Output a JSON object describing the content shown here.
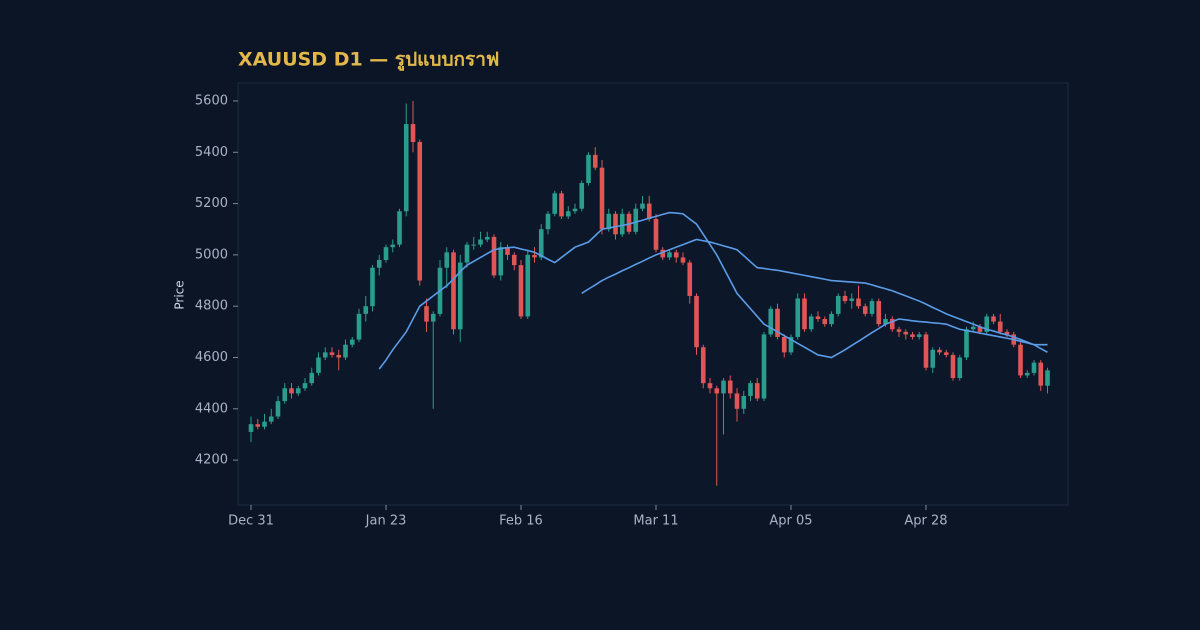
{
  "chart_data": {
    "type": "candlestick",
    "title": "XAUUSD D1 — รูปแบบกราฟ",
    "y_label": "Price",
    "ylim": [
      4025,
      5670
    ],
    "yticks": [
      4200,
      4400,
      4600,
      4800,
      5000,
      5200,
      5400,
      5600
    ],
    "up_color": "#2a9d8f",
    "down_color": "#e05656",
    "categories": [
      "Dec 31",
      null,
      null,
      null,
      null,
      null,
      null,
      null,
      null,
      null,
      null,
      null,
      null,
      null,
      null,
      null,
      null,
      null,
      null,
      null,
      "Jan 23",
      null,
      null,
      null,
      null,
      null,
      null,
      null,
      null,
      null,
      null,
      null,
      null,
      null,
      null,
      null,
      null,
      null,
      null,
      null,
      "Feb 16",
      null,
      null,
      null,
      null,
      null,
      null,
      null,
      null,
      null,
      null,
      null,
      null,
      null,
      null,
      null,
      null,
      null,
      null,
      null,
      "Mar 11",
      null,
      null,
      null,
      null,
      null,
      null,
      null,
      null,
      null,
      null,
      null,
      null,
      null,
      null,
      null,
      null,
      null,
      null,
      null,
      "Apr 05",
      null,
      null,
      null,
      null,
      null,
      null,
      null,
      null,
      null,
      null,
      null,
      null,
      null,
      null,
      null,
      null,
      null,
      null,
      null,
      "Apr 28",
      null,
      null,
      null,
      null,
      null,
      null,
      null,
      null,
      null,
      null,
      null,
      null,
      null,
      null,
      null,
      null,
      null,
      null
    ],
    "ohlc": [
      [
        4310,
        4370,
        4270,
        4340
      ],
      [
        4340,
        4360,
        4320,
        4330
      ],
      [
        4330,
        4380,
        4320,
        4350
      ],
      [
        4350,
        4400,
        4340,
        4370
      ],
      [
        4370,
        4450,
        4360,
        4430
      ],
      [
        4430,
        4500,
        4420,
        4480
      ],
      [
        4480,
        4500,
        4440,
        4460
      ],
      [
        4460,
        4490,
        4450,
        4480
      ],
      [
        4480,
        4520,
        4470,
        4500
      ],
      [
        4500,
        4560,
        4490,
        4540
      ],
      [
        4540,
        4620,
        4530,
        4600
      ],
      [
        4600,
        4640,
        4590,
        4620
      ],
      [
        4620,
        4640,
        4600,
        4610
      ],
      [
        4610,
        4630,
        4550,
        4600
      ],
      [
        4600,
        4670,
        4590,
        4650
      ],
      [
        4650,
        4680,
        4640,
        4670
      ],
      [
        4670,
        4790,
        4660,
        4770
      ],
      [
        4770,
        4840,
        4740,
        4800
      ],
      [
        4800,
        4960,
        4780,
        4950
      ],
      [
        4950,
        5000,
        4920,
        4980
      ],
      [
        4980,
        5040,
        4970,
        5030
      ],
      [
        5030,
        5060,
        5010,
        5040
      ],
      [
        5040,
        5180,
        5030,
        5170
      ],
      [
        5170,
        5590,
        5150,
        5510
      ],
      [
        5510,
        5600,
        5400,
        5440
      ],
      [
        5440,
        5450,
        4880,
        4900
      ],
      [
        4800,
        4830,
        4700,
        4740
      ],
      [
        4740,
        4780,
        4400,
        4770
      ],
      [
        4770,
        4980,
        4760,
        4950
      ],
      [
        4950,
        5030,
        4870,
        5010
      ],
      [
        5010,
        5020,
        4690,
        4710
      ],
      [
        4710,
        5000,
        4660,
        4970
      ],
      [
        4970,
        5050,
        4950,
        5040
      ],
      [
        5040,
        5070,
        5020,
        5040
      ],
      [
        5040,
        5090,
        5030,
        5060
      ],
      [
        5060,
        5090,
        5050,
        5070
      ],
      [
        5070,
        5080,
        4910,
        4920
      ],
      [
        4920,
        5050,
        4900,
        5030
      ],
      [
        5030,
        5040,
        4980,
        5000
      ],
      [
        5000,
        5010,
        4940,
        4960
      ],
      [
        4960,
        4980,
        4750,
        4760
      ],
      [
        4760,
        5020,
        4750,
        5000
      ],
      [
        5000,
        5030,
        4970,
        4990
      ],
      [
        4990,
        5120,
        4980,
        5100
      ],
      [
        5100,
        5170,
        5080,
        5160
      ],
      [
        5160,
        5250,
        5150,
        5240
      ],
      [
        5240,
        5250,
        5140,
        5150
      ],
      [
        5150,
        5190,
        5140,
        5170
      ],
      [
        5170,
        5200,
        5160,
        5180
      ],
      [
        5180,
        5290,
        5170,
        5280
      ],
      [
        5280,
        5400,
        5270,
        5390
      ],
      [
        5390,
        5420,
        5330,
        5340
      ],
      [
        5340,
        5370,
        5080,
        5100
      ],
      [
        5100,
        5180,
        5090,
        5160
      ],
      [
        5160,
        5170,
        5060,
        5080
      ],
      [
        5080,
        5180,
        5070,
        5160
      ],
      [
        5160,
        5170,
        5080,
        5090
      ],
      [
        5090,
        5200,
        5080,
        5180
      ],
      [
        5180,
        5230,
        5170,
        5200
      ],
      [
        5200,
        5230,
        5130,
        5140
      ],
      [
        5140,
        5160,
        5010,
        5020
      ],
      [
        5020,
        5030,
        4980,
        4990
      ],
      [
        4990,
        5020,
        4980,
        5010
      ],
      [
        5010,
        5020,
        4970,
        4990
      ],
      [
        4990,
        5010,
        4960,
        4970
      ],
      [
        4970,
        4980,
        4810,
        4840
      ],
      [
        4840,
        4850,
        4610,
        4640
      ],
      [
        4640,
        4650,
        4480,
        4500
      ],
      [
        4500,
        4520,
        4460,
        4480
      ],
      [
        4480,
        4490,
        4100,
        4460
      ],
      [
        4460,
        4520,
        4300,
        4510
      ],
      [
        4510,
        4530,
        4440,
        4460
      ],
      [
        4460,
        4480,
        4350,
        4400
      ],
      [
        4400,
        4470,
        4380,
        4450
      ],
      [
        4450,
        4510,
        4430,
        4500
      ],
      [
        4500,
        4520,
        4430,
        4440
      ],
      [
        4440,
        4700,
        4430,
        4690
      ],
      [
        4690,
        4800,
        4680,
        4790
      ],
      [
        4790,
        4810,
        4670,
        4680
      ],
      [
        4680,
        4690,
        4600,
        4620
      ],
      [
        4620,
        4690,
        4610,
        4680
      ],
      [
        4680,
        4850,
        4670,
        4830
      ],
      [
        4830,
        4850,
        4700,
        4710
      ],
      [
        4710,
        4770,
        4700,
        4760
      ],
      [
        4760,
        4780,
        4740,
        4750
      ],
      [
        4750,
        4760,
        4720,
        4730
      ],
      [
        4730,
        4780,
        4720,
        4770
      ],
      [
        4770,
        4850,
        4760,
        4840
      ],
      [
        4840,
        4860,
        4810,
        4820
      ],
      [
        4820,
        4850,
        4790,
        4830
      ],
      [
        4830,
        4880,
        4790,
        4800
      ],
      [
        4800,
        4810,
        4760,
        4770
      ],
      [
        4770,
        4830,
        4760,
        4820
      ],
      [
        4820,
        4830,
        4720,
        4730
      ],
      [
        4730,
        4770,
        4720,
        4750
      ],
      [
        4750,
        4760,
        4700,
        4710
      ],
      [
        4710,
        4720,
        4680,
        4700
      ],
      [
        4700,
        4710,
        4670,
        4690
      ],
      [
        4690,
        4700,
        4670,
        4680
      ],
      [
        4680,
        4700,
        4670,
        4690
      ],
      [
        4690,
        4700,
        4550,
        4560
      ],
      [
        4560,
        4640,
        4540,
        4630
      ],
      [
        4630,
        4640,
        4610,
        4620
      ],
      [
        4620,
        4630,
        4600,
        4610
      ],
      [
        4610,
        4620,
        4510,
        4520
      ],
      [
        4520,
        4610,
        4510,
        4600
      ],
      [
        4600,
        4720,
        4590,
        4710
      ],
      [
        4710,
        4740,
        4700,
        4720
      ],
      [
        4720,
        4730,
        4690,
        4700
      ],
      [
        4700,
        4770,
        4690,
        4760
      ],
      [
        4760,
        4770,
        4730,
        4740
      ],
      [
        4740,
        4770,
        4690,
        4700
      ],
      [
        4700,
        4710,
        4680,
        4690
      ],
      [
        4690,
        4700,
        4640,
        4650
      ],
      [
        4650,
        4660,
        4520,
        4530
      ],
      [
        4530,
        4550,
        4520,
        4540
      ],
      [
        4540,
        4590,
        4530,
        4580
      ],
      [
        4580,
        4590,
        4470,
        4490
      ],
      [
        4490,
        4560,
        4460,
        4550
      ]
    ],
    "ma_lines": [
      {
        "color": "#5b9ce8",
        "values": [
          null,
          null,
          null,
          null,
          null,
          null,
          null,
          null,
          null,
          null,
          null,
          null,
          null,
          null,
          null,
          null,
          null,
          null,
          null,
          4555,
          4590,
          4630,
          4665,
          4700,
          4750,
          4800,
          4820,
          4840,
          4860,
          4880,
          4905,
          4935,
          4960,
          4975,
          4990,
          5005,
          5020,
          5025,
          5028,
          5030,
          5023,
          5017,
          5010,
          4997,
          4983,
          4970,
          4990,
          5010,
          5030,
          5040,
          5050,
          5075,
          5100,
          5105,
          5110,
          5115,
          5120,
          5128,
          5135,
          5143,
          5150,
          5158,
          5165,
          5163,
          5160,
          5140,
          5120,
          5080,
          5040,
          5000,
          4950,
          4900,
          4850,
          4820,
          4790,
          4760,
          4730,
          4715,
          4700,
          4685,
          4670,
          4655,
          4640,
          4625,
          4610,
          4605,
          4600,
          4615,
          4630,
          4647,
          4663,
          4680,
          4697,
          4713,
          4730,
          4740,
          4750,
          4747,
          4743,
          4740,
          4738,
          4735,
          4733,
          4730,
          4720,
          4710,
          4705,
          4700,
          4695,
          4690,
          4685,
          4680,
          4675,
          4670,
          4663,
          4657,
          4650,
          4650,
          4650
        ]
      },
      {
        "color": "#5b9ce8",
        "values": [
          null,
          null,
          null,
          null,
          null,
          null,
          null,
          null,
          null,
          null,
          null,
          null,
          null,
          null,
          null,
          null,
          null,
          null,
          null,
          null,
          null,
          null,
          null,
          null,
          null,
          null,
          null,
          null,
          null,
          null,
          null,
          null,
          null,
          null,
          null,
          null,
          null,
          null,
          null,
          null,
          null,
          null,
          null,
          null,
          null,
          null,
          null,
          null,
          null,
          4850,
          4867,
          4883,
          4900,
          4913,
          4925,
          4938,
          4950,
          4963,
          4975,
          4988,
          5000,
          5010,
          5020,
          5030,
          5040,
          5050,
          5060,
          5055,
          5050,
          5043,
          5035,
          5028,
          5020,
          4997,
          4973,
          4950,
          4947,
          4943,
          4940,
          4935,
          4930,
          4925,
          4920,
          4915,
          4910,
          4905,
          4900,
          4898,
          4896,
          4894,
          4892,
          4890,
          4883,
          4875,
          4868,
          4860,
          4850,
          4840,
          4830,
          4820,
          4808,
          4795,
          4783,
          4770,
          4760,
          4750,
          4740,
          4730,
          4720,
          4710,
          4703,
          4695,
          4688,
          4680,
          4670,
          4660,
          4650,
          4635,
          4620
        ]
      }
    ]
  }
}
